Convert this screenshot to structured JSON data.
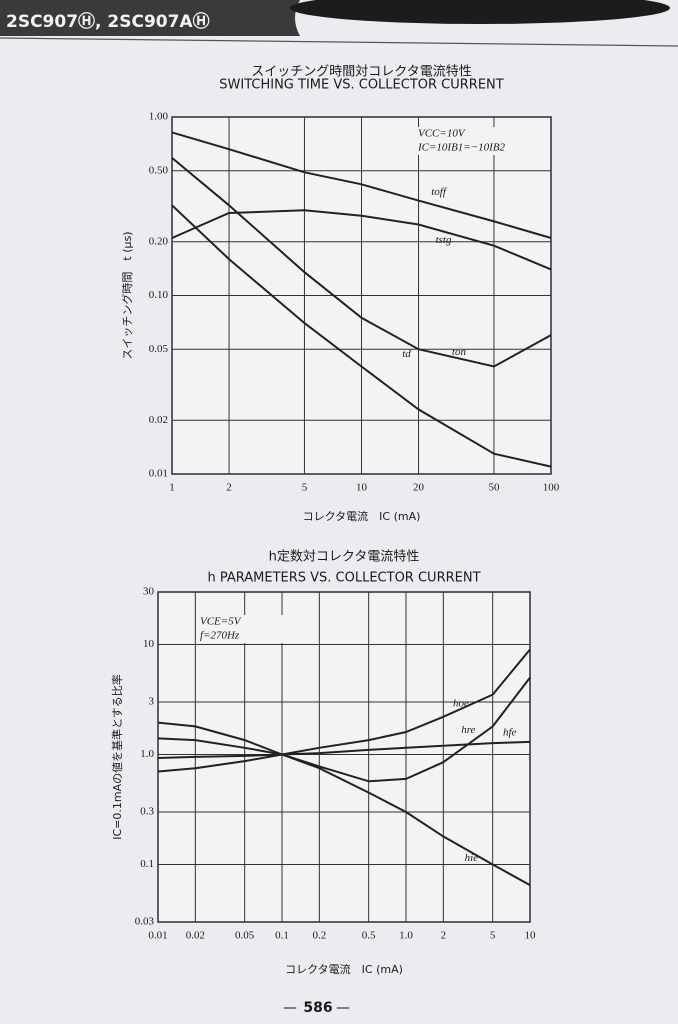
{
  "header": "2SC907Ⓗ, 2SC907AⒽ",
  "page_number": "586",
  "chart_data": [
    {
      "type": "line",
      "title_ja": "スイッチング時間対コレクタ電流特性",
      "title": "SWITCHING TIME VS. COLLECTOR CURRENT",
      "xlabel": "コレクタ電流　IC (mA)",
      "ylabel": "スイッチング時間　t (μs)",
      "annotations": [
        "VCC=10V",
        "IC=10IB1=−10IB2"
      ],
      "xscale": "log",
      "yscale": "log",
      "grid": true,
      "xlim": [
        1,
        100
      ],
      "ylim": [
        0.01,
        1
      ],
      "xticks": [
        1,
        2,
        5,
        10,
        20,
        50,
        100
      ],
      "yticks": [
        {
          "value": 1,
          "label": "1.00"
        },
        {
          "value": 0.5,
          "label": "0.50"
        },
        {
          "value": 0.2,
          "label": "0.20"
        },
        {
          "value": 0.1,
          "label": "0.10"
        },
        0.05,
        0.02,
        0.01
      ],
      "x": [
        1,
        2,
        5,
        10,
        20,
        50,
        100
      ],
      "series": [
        {
          "name": "toff",
          "color": "#222222",
          "values": [
            0.82,
            0.66,
            0.49,
            0.42,
            0.34,
            0.26,
            0.21
          ]
        },
        {
          "name": "tstg",
          "color": "#222222",
          "values": [
            0.21,
            0.29,
            0.3,
            0.28,
            0.25,
            0.19,
            0.14
          ]
        },
        {
          "name": "ton",
          "color": "#222222",
          "values": [
            0.59,
            0.32,
            0.135,
            0.075,
            0.05,
            0.04,
            0.06
          ]
        },
        {
          "name": "td",
          "color": "#222222",
          "values": [
            0.32,
            0.16,
            0.07,
            0.04,
            0.023,
            0.013,
            0.011
          ]
        }
      ]
    },
    {
      "type": "line",
      "title_ja": "h定数対コレクタ電流特性",
      "title": "h PARAMETERS VS. COLLECTOR CURRENT",
      "xlabel": "コレクタ電流　IC (mA)",
      "ylabel": "IC=0.1mAの値を基準とする比率",
      "annotations": [
        "VCE=5V",
        "f=270Hz"
      ],
      "xscale": "log",
      "yscale": "log",
      "grid": true,
      "xlim": [
        0.01,
        10
      ],
      "ylim": [
        0.03,
        30
      ],
      "xticks": [
        0.01,
        0.02,
        0.05,
        0.1,
        0.2,
        0.5,
        {
          "value": 1,
          "label": "1.0"
        },
        2,
        5,
        10
      ],
      "yticks": [
        30,
        10,
        3,
        {
          "value": 1,
          "label": "1.0"
        },
        0.3,
        0.1,
        0.03
      ],
      "x": [
        0.01,
        0.02,
        0.05,
        0.1,
        0.2,
        0.5,
        1,
        2,
        5,
        10
      ],
      "series": [
        {
          "name": "hie",
          "color": "#222222",
          "values": [
            1.95,
            1.8,
            1.35,
            1.0,
            0.75,
            0.45,
            0.3,
            0.18,
            0.1,
            0.065
          ]
        },
        {
          "name": "hre",
          "color": "#222222",
          "values": [
            1.4,
            1.35,
            1.15,
            1.0,
            0.78,
            0.57,
            0.6,
            0.85,
            1.8,
            5
          ]
        },
        {
          "name": "hfe",
          "color": "#222222",
          "values": [
            0.93,
            0.95,
            0.97,
            1.0,
            1.03,
            1.1,
            1.15,
            1.2,
            1.27,
            1.3
          ]
        },
        {
          "name": "hoe",
          "color": "#222222",
          "values": [
            0.7,
            0.75,
            0.87,
            1.0,
            1.15,
            1.35,
            1.6,
            2.2,
            3.5,
            9
          ]
        }
      ]
    }
  ]
}
